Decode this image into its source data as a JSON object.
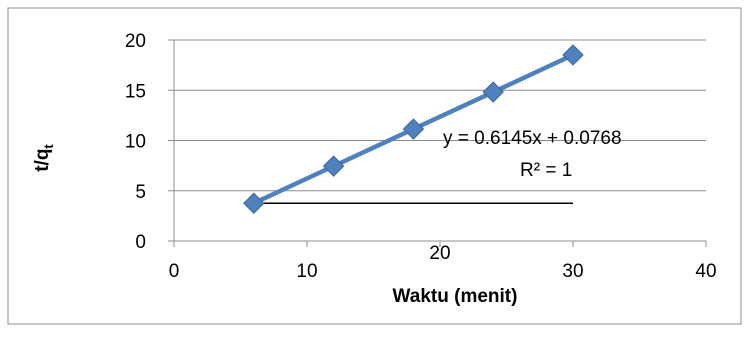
{
  "chart_data": {
    "type": "scatter",
    "title": "",
    "xlabel": "Waktu (menit)",
    "ylabel": "t/q",
    "ylabel_sub": "t",
    "xlim": [
      0,
      40
    ],
    "ylim": [
      0,
      20
    ],
    "xticks": [
      "0",
      "10",
      "20",
      "30",
      "40"
    ],
    "yticks": [
      "0",
      "5",
      "10",
      "15",
      "20"
    ],
    "grid": "horizontal",
    "series": [
      {
        "color": "#4f81bd",
        "marker": "diamond",
        "points": [
          {
            "x": 6,
            "y": 3.76
          },
          {
            "x": 12,
            "y": 7.45
          },
          {
            "x": 18,
            "y": 11.14
          },
          {
            "x": 24,
            "y": 14.82
          },
          {
            "x": 30,
            "y": 18.51
          }
        ]
      }
    ],
    "trendline": {
      "equation": "y = 0.6145x + 0.0768",
      "r_squared": "R² = 1"
    },
    "reference_line": {
      "x": [
        6,
        30
      ],
      "y": [
        3.76,
        3.76
      ],
      "color": "#000000"
    }
  }
}
